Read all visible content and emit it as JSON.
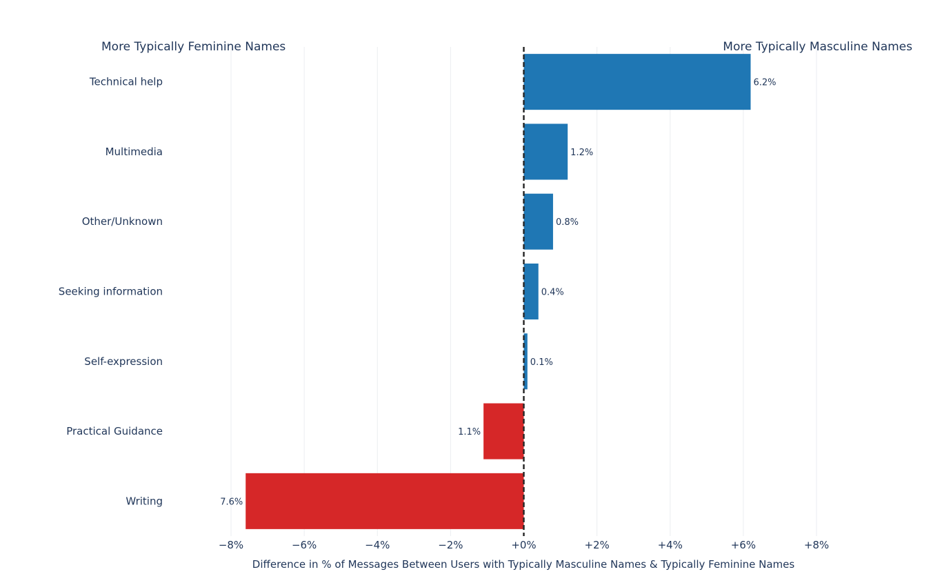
{
  "chart_data": {
    "type": "bar",
    "orientation": "horizontal",
    "left_title": "More Typically Feminine Names",
    "right_title": "More Typically Masculine Names",
    "xlabel": "Difference in % of Messages Between Users with Typically Masculine Names & Typically Feminine Names",
    "xlim": [
      -8,
      8
    ],
    "xticks": [
      {
        "value": -8,
        "label": "−8%"
      },
      {
        "value": -6,
        "label": "−6%"
      },
      {
        "value": -4,
        "label": "−4%"
      },
      {
        "value": -2,
        "label": "−2%"
      },
      {
        "value": 0,
        "label": "+0%"
      },
      {
        "value": 2,
        "label": "+2%"
      },
      {
        "value": 4,
        "label": "+4%"
      },
      {
        "value": 6,
        "label": "+6%"
      },
      {
        "value": 8,
        "label": "+8%"
      }
    ],
    "bars": [
      {
        "category": "Technical help",
        "value": 6.2,
        "label": "6.2%"
      },
      {
        "category": "Multimedia",
        "value": 1.2,
        "label": "1.2%"
      },
      {
        "category": "Other/Unknown",
        "value": 0.8,
        "label": "0.8%"
      },
      {
        "category": "Seeking information",
        "value": 0.4,
        "label": "0.4%"
      },
      {
        "category": "Self-expression",
        "value": 0.1,
        "label": "0.1%"
      },
      {
        "category": "Practical Guidance",
        "value": -1.1,
        "label": "1.1%"
      },
      {
        "category": "Writing",
        "value": -7.6,
        "label": "7.6%"
      }
    ],
    "colors": {
      "positive": "#1f77b4",
      "negative": "#d62728"
    },
    "grid": true,
    "zero_line": "dashed"
  }
}
